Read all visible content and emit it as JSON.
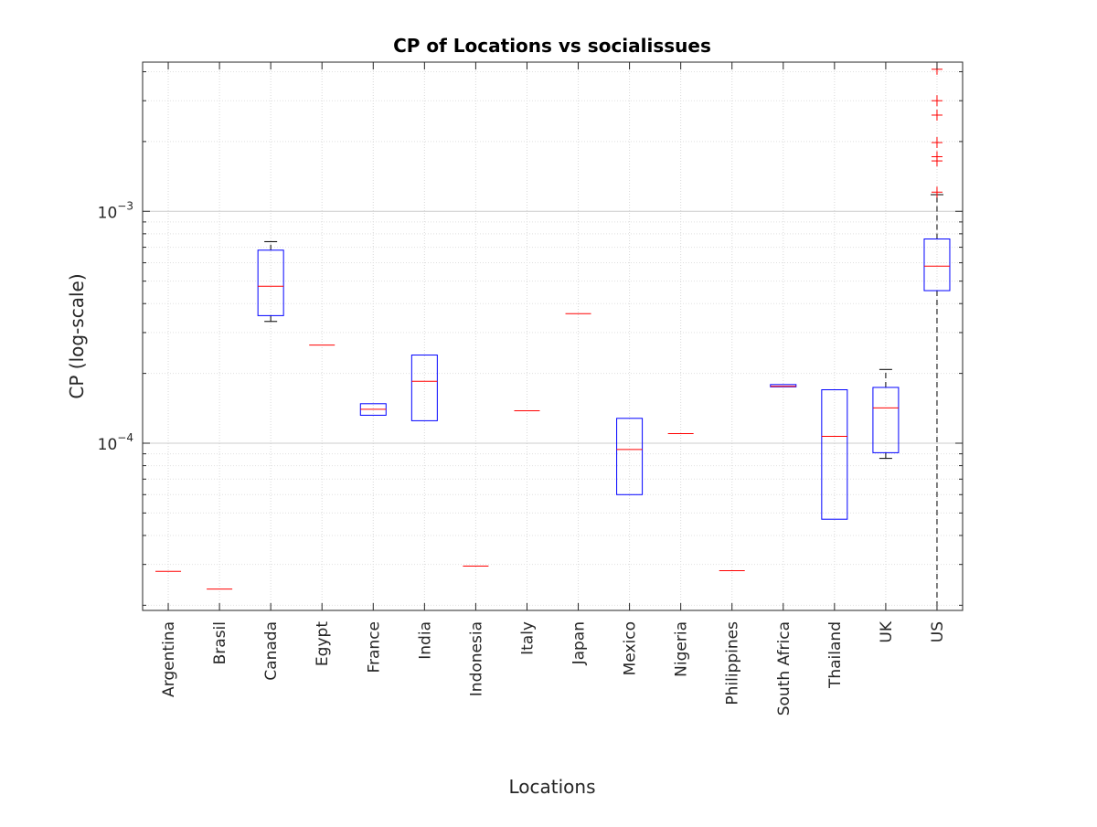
{
  "chart_data": {
    "type": "box",
    "title": "CP of Locations vs socialissues",
    "xlabel": "Locations",
    "ylabel": "CP (log-scale)",
    "yscale": "log",
    "ylim": [
      1.9e-05,
      0.0044
    ],
    "grid": true,
    "y_major_ticks": [
      {
        "value": 0.0001,
        "base": "10",
        "exponent": "−4"
      },
      {
        "value": 0.001,
        "base": "10",
        "exponent": "−3"
      }
    ],
    "categories": [
      "Argentina",
      "Brasil",
      "Canada",
      "Egypt",
      "France",
      "India",
      "Indonesia",
      "Italy",
      "Japan",
      "Mexico",
      "Nigeria",
      "Philippines",
      "South Africa",
      "Thailand",
      "UK",
      "US"
    ],
    "boxes": [
      {
        "category": "Argentina",
        "median": 2.8e-05
      },
      {
        "category": "Brasil",
        "median": 2.35e-05
      },
      {
        "category": "Canada",
        "q1": 0.000355,
        "median": 0.000475,
        "q3": 0.00068,
        "whisker_low": 0.000335,
        "whisker_high": 0.00074
      },
      {
        "category": "Egypt",
        "median": 0.000265
      },
      {
        "category": "France",
        "q1": 0.000132,
        "median": 0.00014,
        "q3": 0.000148
      },
      {
        "category": "India",
        "q1": 0.000125,
        "median": 0.000185,
        "q3": 0.00024
      },
      {
        "category": "Indonesia",
        "median": 2.95e-05
      },
      {
        "category": "Italy",
        "median": 0.000138
      },
      {
        "category": "Japan",
        "median": 0.000362
      },
      {
        "category": "Mexico",
        "q1": 6e-05,
        "median": 9.4e-05,
        "q3": 0.000128
      },
      {
        "category": "Nigeria",
        "median": 0.00011
      },
      {
        "category": "Philippines",
        "median": 2.82e-05
      },
      {
        "category": "South Africa",
        "q1": 0.000175,
        "median": 0.000176,
        "q3": 0.000179
      },
      {
        "category": "Thailand",
        "q1": 4.7e-05,
        "median": 0.000107,
        "q3": 0.00017
      },
      {
        "category": "UK",
        "q1": 9.1e-05,
        "median": 0.000142,
        "q3": 0.000174,
        "whisker_low": 8.6e-05,
        "whisker_high": 0.000208
      },
      {
        "category": "US",
        "q1": 0.000455,
        "median": 0.00058,
        "q3": 0.00076,
        "whisker_low": 1.9e-05,
        "whisker_high": 0.00118,
        "outliers": [
          0.00121,
          0.00165,
          0.00172,
          0.00198,
          0.0026,
          0.003,
          0.0041
        ]
      }
    ],
    "colors": {
      "box": "#0000ff",
      "median": "#ff0000",
      "whisker": "#000000",
      "outlier": "#ff0000",
      "grid": "#d9d9d9",
      "axes": "#262626"
    }
  }
}
